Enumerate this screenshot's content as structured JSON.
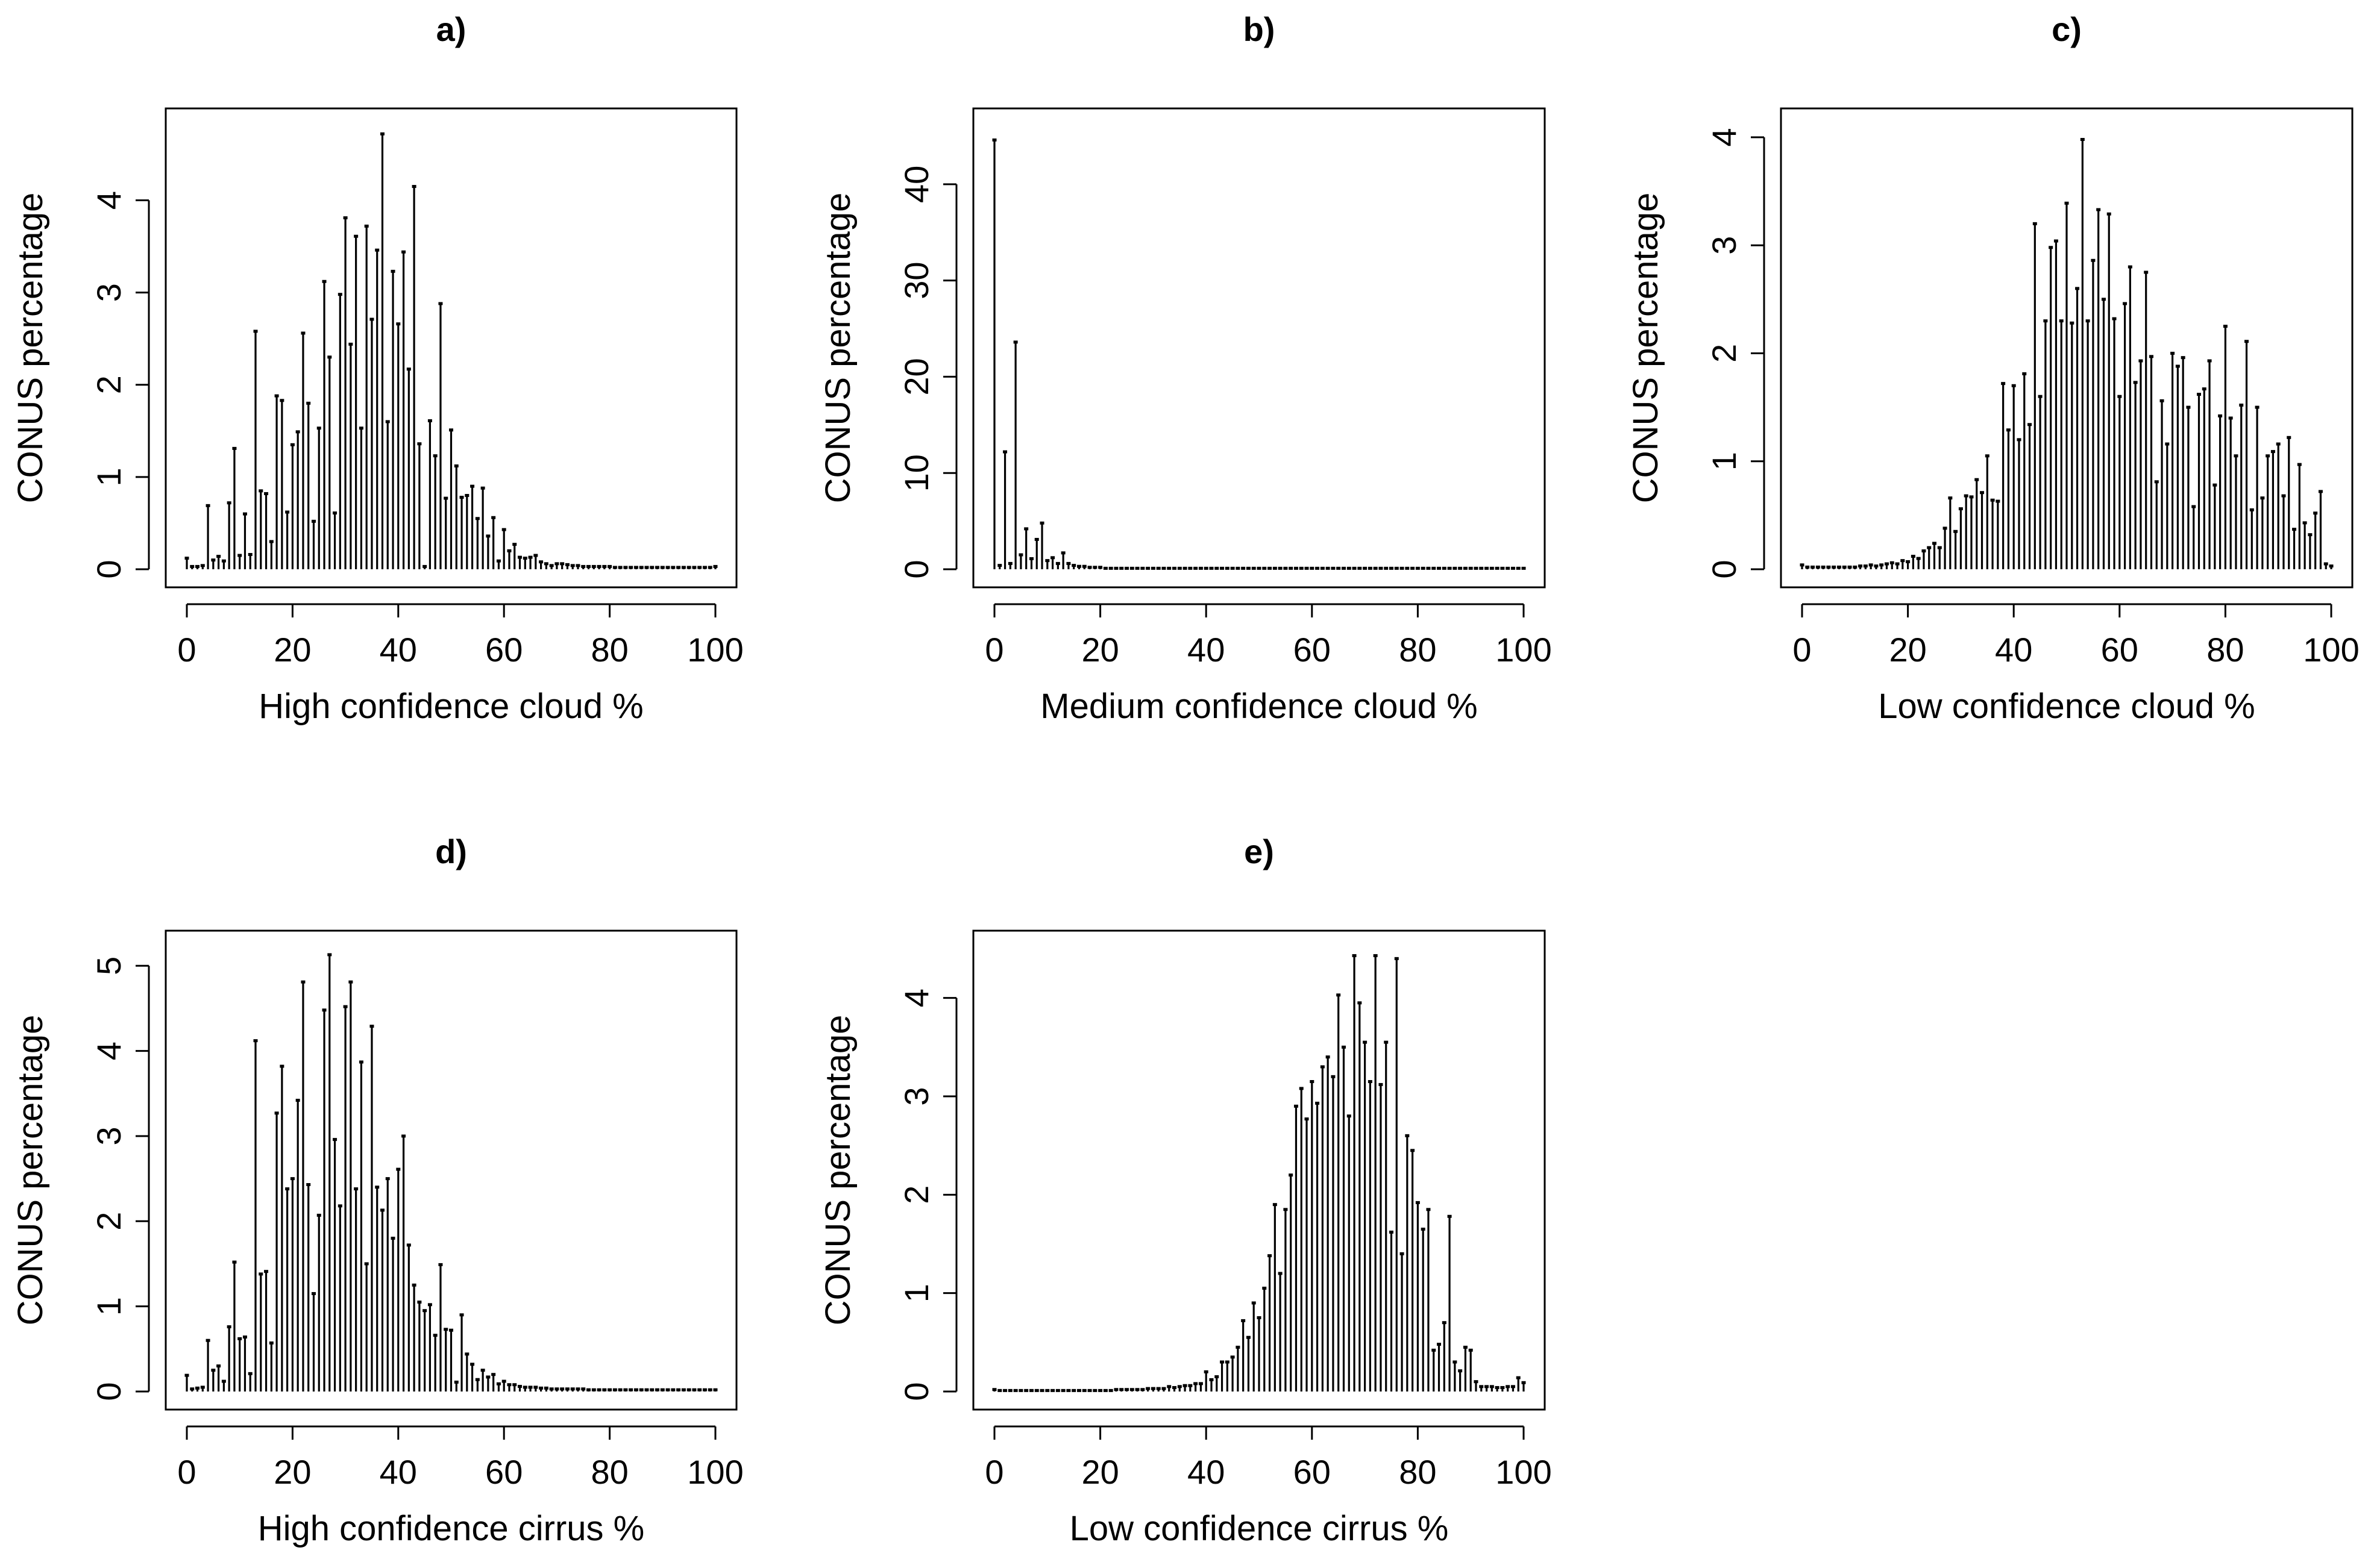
{
  "chart_data": [
    {
      "type": "bar",
      "title": "a)",
      "xlabel": "High confidence cloud %",
      "ylabel": "CONUS percentage",
      "xlim": [
        0,
        100
      ],
      "ylim": [
        0,
        4.8
      ],
      "xticks": [
        0,
        20,
        40,
        60,
        80,
        100
      ],
      "yticks": [
        0,
        1,
        2,
        3,
        4
      ],
      "x_values": [
        0,
        1,
        2,
        3,
        4,
        5,
        6,
        7,
        8,
        9,
        10,
        11,
        12,
        13,
        14,
        15,
        16,
        17,
        18,
        19,
        20,
        21,
        22,
        23,
        24,
        25,
        26,
        27,
        28,
        29,
        30,
        31,
        32,
        33,
        34,
        35,
        36,
        37,
        38,
        39,
        40,
        41,
        42,
        43,
        44,
        45,
        46,
        47,
        48,
        49,
        50,
        51,
        52,
        53,
        54,
        55,
        56,
        57,
        58,
        59,
        60,
        61,
        62,
        63,
        64,
        65,
        66,
        67,
        68,
        69,
        70,
        71,
        72,
        73,
        74,
        75,
        76,
        77,
        78,
        79,
        80,
        81,
        82,
        83,
        84,
        85,
        86,
        87,
        88,
        89,
        90,
        91,
        92,
        93,
        94,
        95,
        96,
        97,
        98,
        99,
        100
      ],
      "values": [
        0.12,
        0.03,
        0.03,
        0.04,
        0.69,
        0.1,
        0.14,
        0.09,
        0.72,
        1.31,
        0.15,
        0.6,
        0.16,
        2.58,
        0.85,
        0.82,
        0.3,
        1.88,
        1.83,
        0.62,
        1.35,
        1.49,
        2.56,
        1.8,
        0.52,
        1.53,
        3.12,
        2.3,
        0.61,
        2.98,
        3.81,
        2.44,
        3.61,
        1.53,
        3.72,
        2.71,
        3.46,
        4.72,
        1.6,
        3.23,
        2.66,
        3.44,
        2.17,
        4.15,
        1.36,
        0.03,
        1.61,
        1.23,
        2.88,
        0.77,
        1.51,
        1.12,
        0.78,
        0.8,
        0.9,
        0.55,
        0.88,
        0.36,
        0.56,
        0.09,
        0.43,
        0.2,
        0.27,
        0.13,
        0.12,
        0.13,
        0.15,
        0.08,
        0.06,
        0.04,
        0.06,
        0.06,
        0.05,
        0.04,
        0.04,
        0.03,
        0.03,
        0.03,
        0.03,
        0.03,
        0.03,
        0.02,
        0.02,
        0.02,
        0.02,
        0.02,
        0.02,
        0.02,
        0.02,
        0.02,
        0.02,
        0.02,
        0.02,
        0.02,
        0.02,
        0.02,
        0.02,
        0.02,
        0.02,
        0.02,
        0.03
      ]
    },
    {
      "type": "bar",
      "title": "b)",
      "xlabel": "Medium confidence cloud %",
      "ylabel": "CONUS percentage",
      "xlim": [
        0,
        100
      ],
      "ylim": [
        0,
        46
      ],
      "xticks": [
        0,
        20,
        40,
        60,
        80,
        100
      ],
      "yticks": [
        0,
        10,
        20,
        30,
        40
      ],
      "x_values": [
        0,
        1,
        2,
        3,
        4,
        5,
        6,
        7,
        8,
        9,
        10,
        11,
        12,
        13,
        14,
        15,
        16,
        17,
        18,
        19,
        20,
        21,
        22,
        23,
        24,
        25,
        26,
        27,
        28,
        29,
        30,
        31,
        32,
        33,
        34,
        35,
        36,
        37,
        38,
        39,
        40,
        41,
        42,
        43,
        44,
        45,
        46,
        47,
        48,
        49,
        50,
        51,
        52,
        53,
        54,
        55,
        56,
        57,
        58,
        59,
        60,
        61,
        62,
        63,
        64,
        65,
        66,
        67,
        68,
        69,
        70,
        71,
        72,
        73,
        74,
        75,
        76,
        77,
        78,
        79,
        80,
        81,
        82,
        83,
        84,
        85,
        86,
        87,
        88,
        89,
        90,
        91,
        92,
        93,
        94,
        95,
        96,
        97,
        98,
        99,
        100
      ],
      "values": [
        44.6,
        0.4,
        12.2,
        0.6,
        23.6,
        1.5,
        4.2,
        1.1,
        3.1,
        4.8,
        0.9,
        1.2,
        0.6,
        1.7,
        0.6,
        0.4,
        0.3,
        0.3,
        0.2,
        0.2,
        0.2,
        0.1,
        0.1,
        0.1,
        0.1,
        0.1,
        0.1,
        0.1,
        0.1,
        0.1,
        0.1,
        0.1,
        0.1,
        0.1,
        0.1,
        0.1,
        0.1,
        0.1,
        0.1,
        0.1,
        0.1,
        0.1,
        0.1,
        0.1,
        0.1,
        0.1,
        0.1,
        0.1,
        0.1,
        0.1,
        0.1,
        0.1,
        0.1,
        0.1,
        0.1,
        0.1,
        0.1,
        0.1,
        0.1,
        0.1,
        0.1,
        0.1,
        0.1,
        0.1,
        0.1,
        0.1,
        0.1,
        0.1,
        0.1,
        0.1,
        0.1,
        0.1,
        0.1,
        0.1,
        0.1,
        0.1,
        0.1,
        0.1,
        0.1,
        0.1,
        0.1,
        0.1,
        0.1,
        0.1,
        0.1,
        0.1,
        0.1,
        0.1,
        0.1,
        0.1,
        0.1,
        0.1,
        0.1,
        0.1,
        0.1,
        0.1,
        0.1,
        0.1,
        0.1,
        0.1,
        0.1
      ]
    },
    {
      "type": "bar",
      "title": "c)",
      "xlabel": "Low confidence cloud %",
      "ylabel": "CONUS percentage",
      "xlim": [
        0,
        100
      ],
      "ylim": [
        0,
        4.1
      ],
      "xticks": [
        0,
        20,
        40,
        60,
        80,
        100
      ],
      "yticks": [
        0,
        1,
        2,
        3,
        4
      ],
      "x_values": [
        0,
        1,
        2,
        3,
        4,
        5,
        6,
        7,
        8,
        9,
        10,
        11,
        12,
        13,
        14,
        15,
        16,
        17,
        18,
        19,
        20,
        21,
        22,
        23,
        24,
        25,
        26,
        27,
        28,
        29,
        30,
        31,
        32,
        33,
        34,
        35,
        36,
        37,
        38,
        39,
        40,
        41,
        42,
        43,
        44,
        45,
        46,
        47,
        48,
        49,
        50,
        51,
        52,
        53,
        54,
        55,
        56,
        57,
        58,
        59,
        60,
        61,
        62,
        63,
        64,
        65,
        66,
        67,
        68,
        69,
        70,
        71,
        72,
        73,
        74,
        75,
        76,
        77,
        78,
        79,
        80,
        81,
        82,
        83,
        84,
        85,
        86,
        87,
        88,
        89,
        90,
        91,
        92,
        93,
        94,
        95,
        96,
        97,
        98,
        99,
        100
      ],
      "values": [
        0.04,
        0.02,
        0.02,
        0.02,
        0.02,
        0.02,
        0.02,
        0.02,
        0.02,
        0.02,
        0.02,
        0.03,
        0.03,
        0.04,
        0.03,
        0.04,
        0.05,
        0.06,
        0.05,
        0.08,
        0.07,
        0.12,
        0.1,
        0.17,
        0.2,
        0.24,
        0.2,
        0.38,
        0.66,
        0.35,
        0.56,
        0.68,
        0.67,
        0.83,
        0.71,
        1.05,
        0.64,
        0.63,
        1.72,
        1.29,
        1.7,
        1.2,
        1.81,
        1.34,
        3.2,
        1.6,
        2.3,
        2.98,
        3.04,
        2.3,
        3.39,
        2.28,
        2.6,
        3.98,
        2.3,
        2.86,
        3.33,
        2.5,
        3.29,
        2.32,
        1.6,
        2.46,
        2.8,
        1.73,
        1.93,
        2.75,
        1.97,
        0.81,
        1.56,
        1.16,
        2.0,
        1.88,
        1.96,
        1.5,
        0.58,
        1.62,
        1.67,
        1.93,
        0.78,
        1.42,
        2.25,
        1.4,
        1.05,
        1.52,
        2.11,
        0.55,
        1.5,
        0.66,
        1.05,
        1.09,
        1.16,
        0.68,
        1.22,
        0.37,
        0.97,
        0.43,
        0.32,
        0.52,
        0.72,
        0.05,
        0.03
      ]
    },
    {
      "type": "bar",
      "title": "d)",
      "xlabel": "High confidence cirrus %",
      "ylabel": "CONUS percentage",
      "xlim": [
        0,
        100
      ],
      "ylim": [
        0,
        5.2
      ],
      "xticks": [
        0,
        20,
        40,
        60,
        80,
        100
      ],
      "yticks": [
        0,
        1,
        2,
        3,
        4,
        5
      ],
      "x_values": [
        0,
        1,
        2,
        3,
        4,
        5,
        6,
        7,
        8,
        9,
        10,
        11,
        12,
        13,
        14,
        15,
        16,
        17,
        18,
        19,
        20,
        21,
        22,
        23,
        24,
        25,
        26,
        27,
        28,
        29,
        30,
        31,
        32,
        33,
        34,
        35,
        36,
        37,
        38,
        39,
        40,
        41,
        42,
        43,
        44,
        45,
        46,
        47,
        48,
        49,
        50,
        51,
        52,
        53,
        54,
        55,
        56,
        57,
        58,
        59,
        60,
        61,
        62,
        63,
        64,
        65,
        66,
        67,
        68,
        69,
        70,
        71,
        72,
        73,
        74,
        75,
        76,
        77,
        78,
        79,
        80,
        81,
        82,
        83,
        84,
        85,
        86,
        87,
        88,
        89,
        90,
        91,
        92,
        93,
        94,
        95,
        96,
        97,
        98,
        99,
        100
      ],
      "values": [
        0.19,
        0.03,
        0.04,
        0.05,
        0.6,
        0.25,
        0.3,
        0.12,
        0.76,
        1.52,
        0.62,
        0.64,
        0.21,
        4.12,
        1.38,
        1.41,
        0.57,
        3.27,
        3.82,
        2.38,
        2.5,
        3.42,
        4.81,
        2.43,
        1.15,
        2.07,
        4.48,
        5.13,
        2.96,
        2.18,
        4.52,
        4.81,
        2.38,
        3.87,
        1.5,
        4.29,
        2.4,
        2.13,
        2.5,
        1.8,
        2.61,
        3.0,
        1.72,
        1.25,
        1.05,
        0.95,
        1.02,
        0.66,
        1.49,
        0.73,
        0.72,
        0.11,
        0.9,
        0.44,
        0.32,
        0.14,
        0.25,
        0.17,
        0.2,
        0.09,
        0.12,
        0.08,
        0.08,
        0.06,
        0.05,
        0.05,
        0.05,
        0.04,
        0.04,
        0.03,
        0.03,
        0.03,
        0.03,
        0.03,
        0.03,
        0.03,
        0.02,
        0.02,
        0.02,
        0.02,
        0.02,
        0.02,
        0.02,
        0.02,
        0.02,
        0.02,
        0.02,
        0.02,
        0.02,
        0.02,
        0.02,
        0.02,
        0.02,
        0.02,
        0.02,
        0.02,
        0.02,
        0.02,
        0.02,
        0.02,
        0.02
      ]
    },
    {
      "type": "bar",
      "title": "e)",
      "xlabel": "Low confidence cirrus %",
      "ylabel": "CONUS percentage",
      "xlim": [
        0,
        100
      ],
      "ylim": [
        0,
        4.5
      ],
      "xticks": [
        0,
        20,
        40,
        60,
        80,
        100
      ],
      "yticks": [
        0,
        1,
        2,
        3,
        4
      ],
      "x_values": [
        0,
        1,
        2,
        3,
        4,
        5,
        6,
        7,
        8,
        9,
        10,
        11,
        12,
        13,
        14,
        15,
        16,
        17,
        18,
        19,
        20,
        21,
        22,
        23,
        24,
        25,
        26,
        27,
        28,
        29,
        30,
        31,
        32,
        33,
        34,
        35,
        36,
        37,
        38,
        39,
        40,
        41,
        42,
        43,
        44,
        45,
        46,
        47,
        48,
        49,
        50,
        51,
        52,
        53,
        54,
        55,
        56,
        57,
        58,
        59,
        60,
        61,
        62,
        63,
        64,
        65,
        66,
        67,
        68,
        69,
        70,
        71,
        72,
        73,
        74,
        75,
        76,
        77,
        78,
        79,
        80,
        81,
        82,
        83,
        84,
        85,
        86,
        87,
        88,
        89,
        90,
        91,
        92,
        93,
        94,
        95,
        96,
        97,
        98,
        99,
        100
      ],
      "values": [
        0.02,
        0.01,
        0.01,
        0.01,
        0.01,
        0.01,
        0.01,
        0.01,
        0.01,
        0.01,
        0.01,
        0.01,
        0.01,
        0.01,
        0.01,
        0.01,
        0.01,
        0.01,
        0.01,
        0.01,
        0.01,
        0.01,
        0.01,
        0.02,
        0.02,
        0.02,
        0.02,
        0.02,
        0.02,
        0.03,
        0.03,
        0.03,
        0.03,
        0.05,
        0.04,
        0.05,
        0.06,
        0.06,
        0.08,
        0.08,
        0.2,
        0.12,
        0.15,
        0.3,
        0.3,
        0.35,
        0.45,
        0.72,
        0.55,
        0.9,
        0.75,
        1.05,
        1.38,
        1.9,
        1.2,
        1.85,
        2.2,
        2.9,
        3.08,
        2.77,
        3.15,
        2.93,
        3.3,
        3.4,
        3.2,
        4.03,
        3.5,
        2.8,
        4.43,
        3.95,
        3.55,
        3.15,
        4.43,
        3.12,
        3.55,
        1.62,
        4.4,
        1.4,
        2.6,
        2.45,
        1.92,
        1.65,
        1.85,
        0.42,
        0.48,
        0.7,
        1.78,
        0.3,
        0.21,
        0.45,
        0.42,
        0.1,
        0.05,
        0.05,
        0.05,
        0.04,
        0.04,
        0.05,
        0.05,
        0.14,
        0.09
      ]
    }
  ]
}
